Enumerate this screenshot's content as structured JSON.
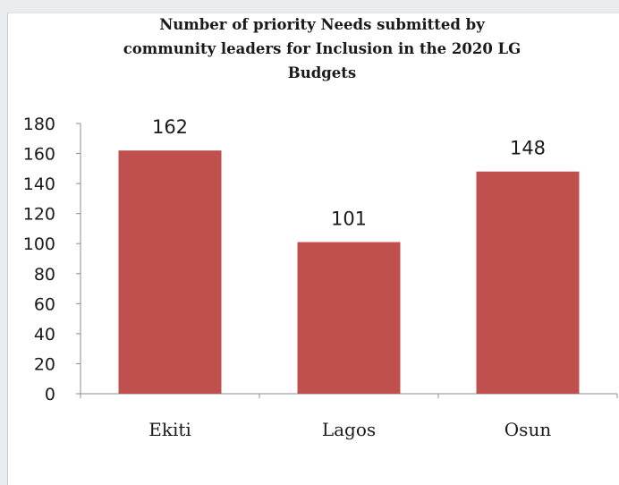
{
  "chart_data": {
    "type": "bar",
    "title": "Number of priority Needs submitted by community leaders for Inclusion in the 2020 LG Budgets",
    "title_lines": [
      "Number of priority Needs submitted by",
      "community leaders for Inclusion in the 2020 LG",
      "Budgets"
    ],
    "categories": [
      "Ekiti",
      "Lagos",
      "Osun"
    ],
    "values": [
      162,
      101,
      148
    ],
    "data_labels": [
      "162",
      "101",
      "148"
    ],
    "y_ticks": [
      "0",
      "20",
      "40",
      "60",
      "80",
      "100",
      "120",
      "140",
      "160",
      "180"
    ],
    "ylim": [
      0,
      180
    ],
    "xlabel": "",
    "ylabel": "",
    "grid": false,
    "legend": "none",
    "bar_color": "#c0504d"
  }
}
